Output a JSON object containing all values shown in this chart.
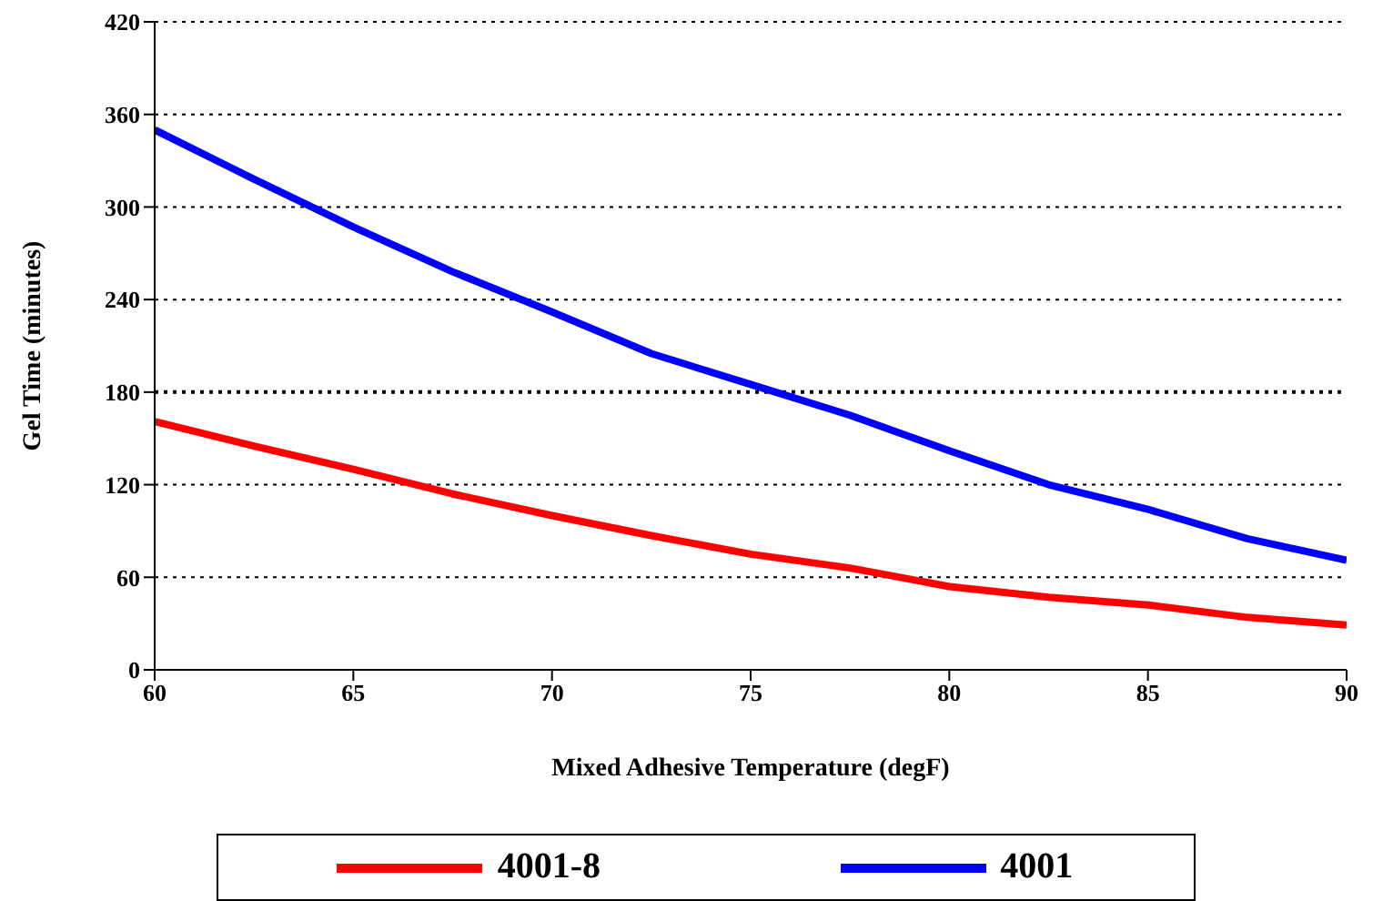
{
  "chart_data": {
    "type": "line",
    "xlabel": "Mixed Adhesive Temperature (degF)",
    "ylabel": "Gel Time (minutes)",
    "x": [
      60,
      62.5,
      65,
      67.5,
      70,
      72.5,
      75,
      77.5,
      80,
      82.5,
      85,
      87.5,
      90
    ],
    "series": [
      {
        "name": "4001-8",
        "color": "#ff0000",
        "values": [
          161,
          145,
          130,
          114,
          100,
          87,
          75,
          66,
          54,
          47,
          42,
          34,
          29
        ]
      },
      {
        "name": "4001",
        "color": "#0000ff",
        "values": [
          350,
          318,
          287,
          258,
          232,
          205,
          185,
          165,
          142,
          120,
          104,
          85,
          71
        ]
      }
    ],
    "xlim": [
      60,
      90
    ],
    "xticks": [
      60,
      65,
      70,
      75,
      80,
      85,
      90
    ],
    "ylim": [
      0,
      420
    ],
    "yticks": [
      0,
      60,
      120,
      180,
      240,
      300,
      360,
      420
    ],
    "grid": "y",
    "legend": "bottom",
    "marker": "none",
    "line_style": "solid",
    "ref_lines": [
      {
        "axis": "y",
        "value": 180,
        "line_style": "dotted",
        "color": "#000000"
      }
    ]
  }
}
